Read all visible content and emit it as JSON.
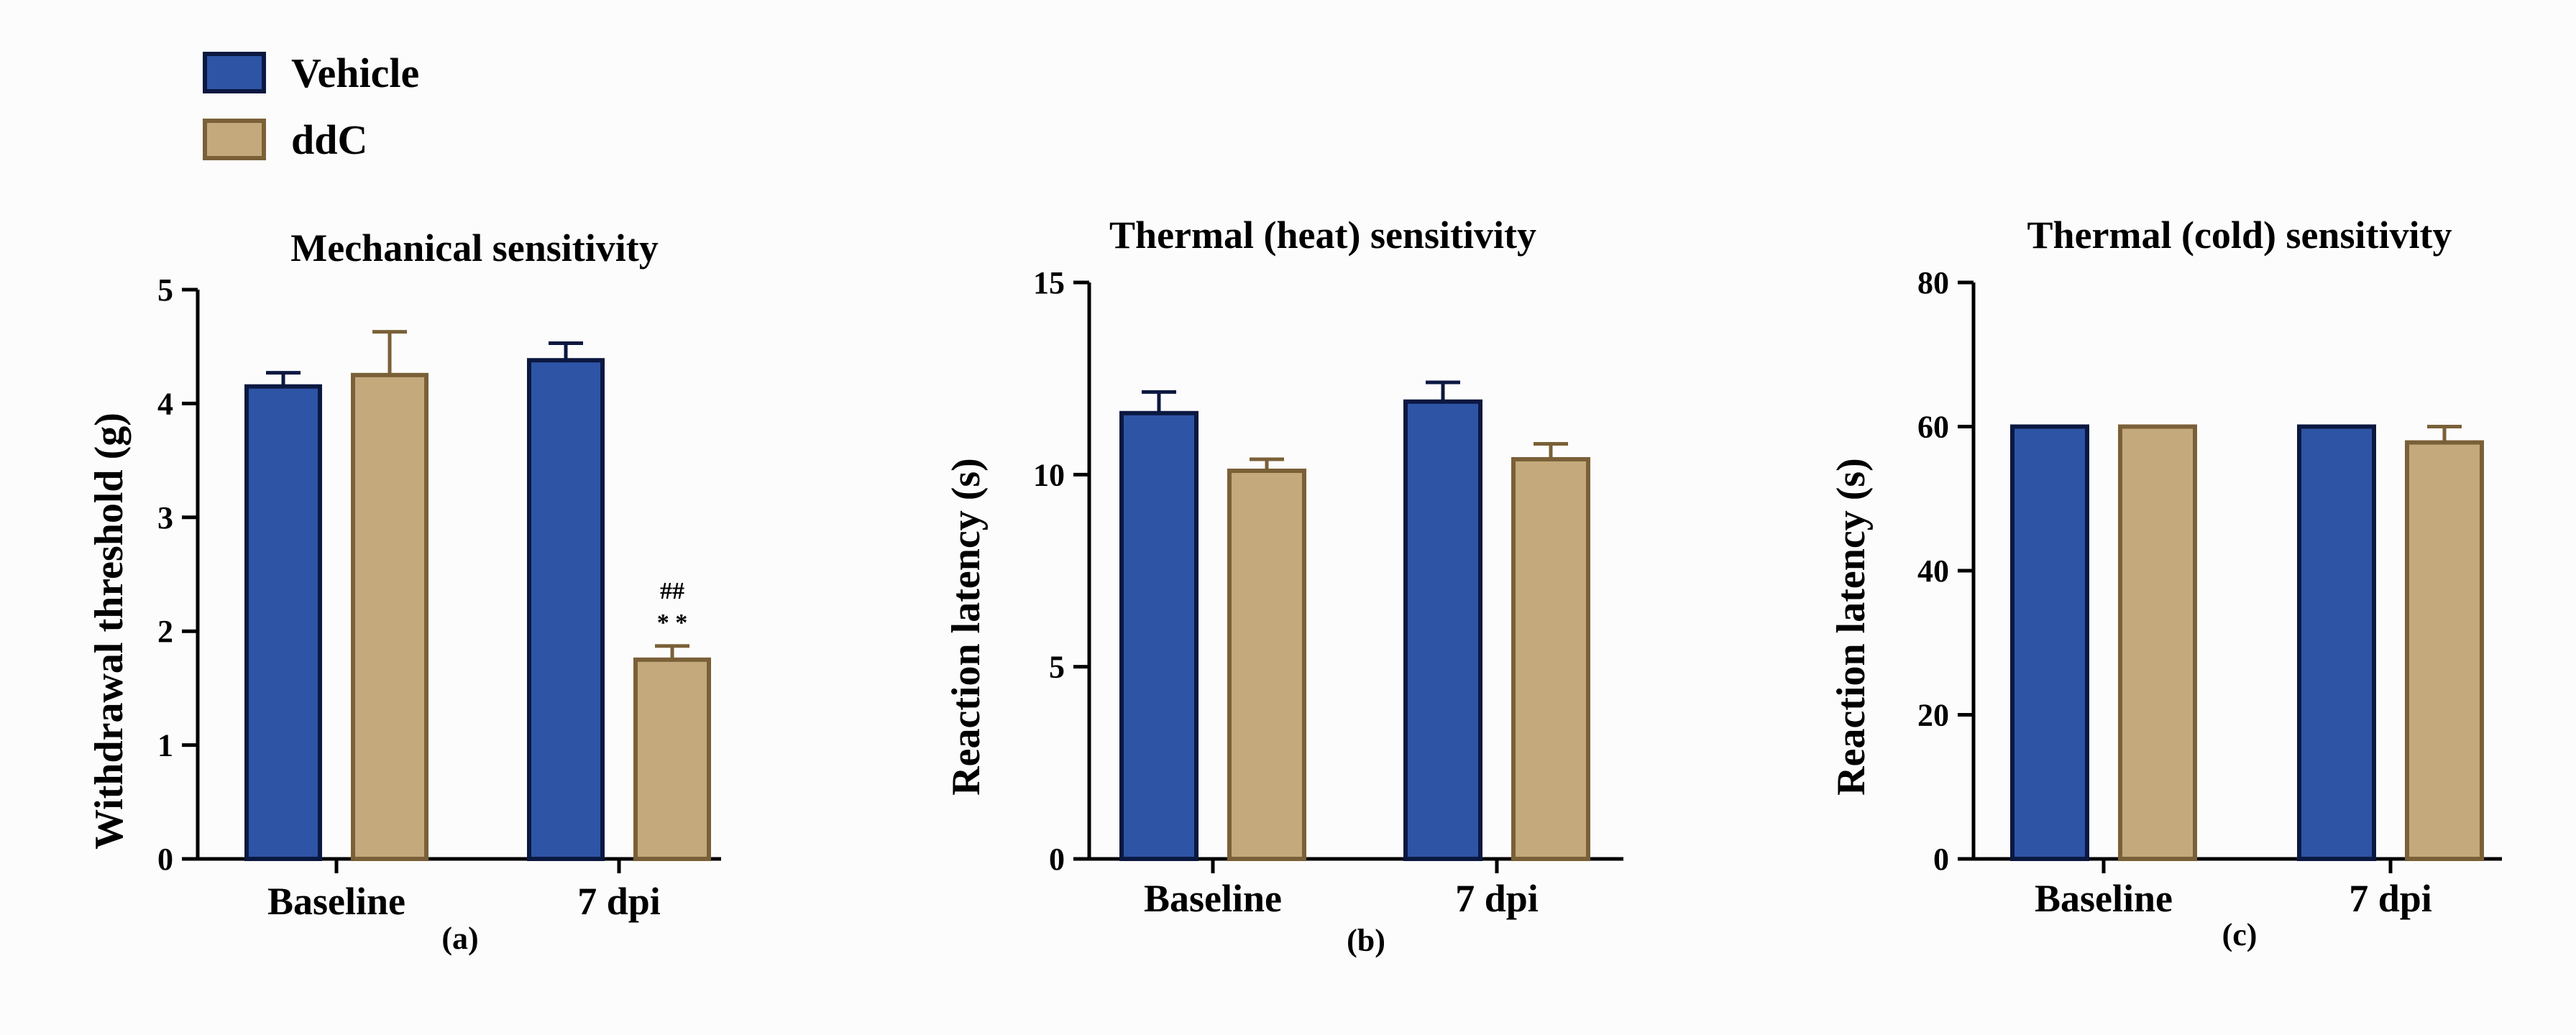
{
  "legend": {
    "items": [
      {
        "label": "Vehicle",
        "color": "#2e54a6",
        "edge": "#0b1840"
      },
      {
        "label": "ddC",
        "color": "#c3a97c",
        "edge": "#7a6038"
      }
    ]
  },
  "chart_data": [
    {
      "type": "bar",
      "panel_label": "(a)",
      "title": "Mechanical sensitivity",
      "xlabel": "",
      "ylabel": "Withdrawal threshold (g)",
      "ylim": [
        0,
        5
      ],
      "yticks": [
        0,
        1,
        2,
        3,
        4,
        5
      ],
      "categories": [
        "Baseline",
        "7 dpi"
      ],
      "series": [
        {
          "name": "Vehicle",
          "values": [
            4.15,
            4.38
          ],
          "errors": [
            0.12,
            0.15
          ]
        },
        {
          "name": "ddC",
          "values": [
            4.25,
            1.75
          ],
          "errors": [
            0.38,
            0.12
          ]
        }
      ],
      "annotations": [
        {
          "series": "ddC",
          "category": "7 dpi",
          "lines": [
            "##",
            "* *"
          ]
        }
      ]
    },
    {
      "type": "bar",
      "panel_label": "(b)",
      "title": "Thermal (heat) sensitivity",
      "xlabel": "",
      "ylabel": "Reaction latency (s)",
      "ylim": [
        0,
        15
      ],
      "yticks": [
        0,
        5,
        10,
        15
      ],
      "categories": [
        "Baseline",
        "7 dpi"
      ],
      "series": [
        {
          "name": "Vehicle",
          "values": [
            11.6,
            11.9
          ],
          "errors": [
            0.55,
            0.5
          ]
        },
        {
          "name": "ddC",
          "values": [
            10.1,
            10.4
          ],
          "errors": [
            0.3,
            0.4
          ]
        }
      ],
      "annotations": []
    },
    {
      "type": "bar",
      "panel_label": "(c)",
      "title": "Thermal (cold) sensitivity",
      "xlabel": "",
      "ylabel": "Reaction latency (s)",
      "ylim": [
        0,
        80
      ],
      "yticks": [
        0,
        20,
        40,
        60,
        80
      ],
      "categories": [
        "Baseline",
        "7 dpi"
      ],
      "series": [
        {
          "name": "Vehicle",
          "values": [
            60,
            60
          ],
          "errors": [
            0,
            0
          ]
        },
        {
          "name": "ddC",
          "values": [
            60,
            57.8
          ],
          "errors": [
            0,
            2.2
          ]
        }
      ],
      "annotations": []
    }
  ]
}
